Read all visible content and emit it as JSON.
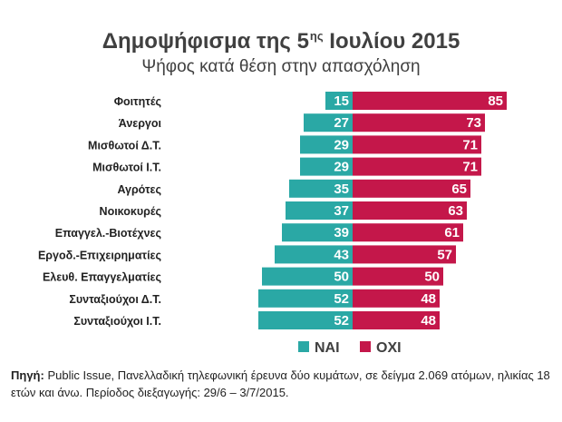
{
  "title_main": "Δημοψήφισμα της 5",
  "title_sup": "ης",
  "title_end": " Ιουλίου 2015",
  "subtitle": "Ψήφος κατά θέση στην απασχόληση",
  "source_label": "Πηγή:",
  "source_text": " Public Issue, Πανελλαδική τηλεφωνική έρευνα δύο κυμάτων, σε δείγμα 2.069 ατόμων, ηλικίας 18 ετών και άνω. Περίοδος διεξαγωγής: 29/6 – 3/7/2015.",
  "colors": {
    "yes": "#2aa8a5",
    "no": "#c4174a"
  },
  "chart_data": {
    "type": "bar",
    "orientation": "horizontal-diverging",
    "categories": [
      "Φοιτητές",
      "Άνεργοι",
      "Μισθωτοί Δ.Τ.",
      "Μισθωτοί Ι.Τ.",
      "Αγρότες",
      "Νοικοκυρές",
      "Επαγγελ.-Βιοτέχνες",
      "Εργοδ.-Επιχειρηματίες",
      "Ελευθ. Επαγγελματίες",
      "Συνταξιούχοι Δ.Τ.",
      "Συνταξιούχοι Ι.Τ."
    ],
    "series": [
      {
        "name": "ΝΑΙ",
        "values": [
          15,
          27,
          29,
          29,
          35,
          37,
          39,
          43,
          50,
          52,
          52
        ]
      },
      {
        "name": "ΟΧΙ",
        "values": [
          85,
          73,
          71,
          71,
          65,
          63,
          61,
          57,
          50,
          48,
          48
        ]
      }
    ],
    "legend_position": "bottom",
    "grid": false
  }
}
